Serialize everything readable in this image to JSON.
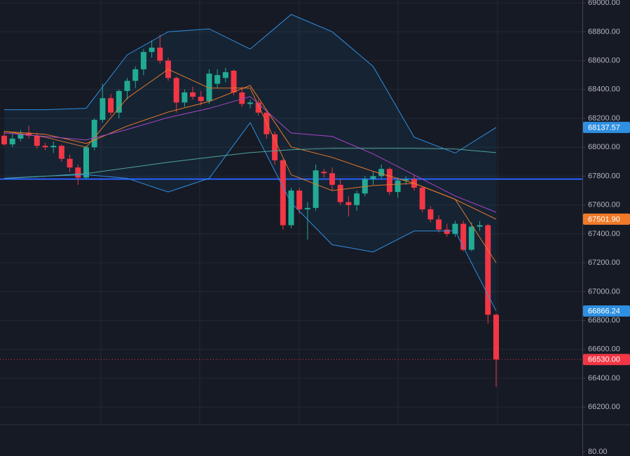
{
  "chart_data": {
    "type": "candlestick",
    "ylim": [
      66080,
      69020
    ],
    "yticks": [
      {
        "value": 66200,
        "label": "66200.00"
      },
      {
        "value": 66400,
        "label": "66400.00"
      },
      {
        "value": 66600,
        "label": "66600.00"
      },
      {
        "value": 66800,
        "label": "66800.00"
      },
      {
        "value": 67000,
        "label": "67000.00"
      },
      {
        "value": 67200,
        "label": "67200.00"
      },
      {
        "value": 67400,
        "label": "67400.00"
      },
      {
        "value": 67600,
        "label": "67600.00"
      },
      {
        "value": 67800,
        "label": "67800.00"
      },
      {
        "value": 68000,
        "label": "68000.00"
      },
      {
        "value": 68200,
        "label": "68200.00"
      },
      {
        "value": 68400,
        "label": "68400.00"
      },
      {
        "value": 68600,
        "label": "68600.00"
      },
      {
        "value": 68800,
        "label": "68800.00"
      },
      {
        "value": 69000,
        "label": "69000.00"
      }
    ],
    "grid": true,
    "up_color": "#22ab94",
    "down_color": "#f23645",
    "open": [
      68080,
      68020,
      68060,
      68100,
      68080,
      68010,
      68000,
      68010,
      67920,
      67860,
      67790,
      68000,
      68190,
      68340,
      68240,
      68390,
      68460,
      68540,
      68660,
      68690,
      68600,
      68480,
      68310,
      68380,
      68350,
      68320,
      68440,
      68480,
      68530,
      68380,
      68300,
      68310,
      68240,
      68090,
      67910,
      67460,
      67700,
      67570,
      67580,
      67830,
      67820,
      67740,
      67620,
      67600,
      67680,
      67780,
      67800,
      67850,
      67690,
      67770,
      67780,
      67720,
      67570,
      67500,
      67430,
      67400,
      67470,
      67290,
      67450,
      67460,
      66840
    ],
    "high": [
      68110,
      68090,
      68120,
      68150,
      68100,
      68030,
      68040,
      68020,
      67950,
      67880,
      68010,
      68200,
      68440,
      68370,
      68400,
      68480,
      68560,
      68680,
      68740,
      68780,
      68620,
      68490,
      68400,
      68420,
      68390,
      68540,
      68540,
      68550,
      68540,
      68420,
      68330,
      68330,
      68260,
      68110,
      67920,
      67720,
      67720,
      67620,
      67880,
      67850,
      67860,
      67780,
      67660,
      67700,
      67800,
      67830,
      67880,
      67860,
      67790,
      67800,
      67810,
      67730,
      67590,
      67530,
      67470,
      67490,
      67490,
      67480,
      67490,
      67470,
      66850
    ],
    "low": [
      68010,
      68000,
      68040,
      68060,
      67990,
      67980,
      67960,
      67900,
      67830,
      67740,
      67780,
      67980,
      68170,
      68220,
      68200,
      68330,
      68410,
      68500,
      68620,
      68580,
      68460,
      68240,
      68280,
      68330,
      68290,
      68300,
      68410,
      68450,
      68360,
      68280,
      68270,
      68220,
      68060,
      67880,
      67430,
      67440,
      67540,
      67360,
      67560,
      67790,
      67700,
      67600,
      67520,
      67560,
      67660,
      67740,
      67780,
      67670,
      67650,
      67740,
      67700,
      67550,
      67480,
      67410,
      67380,
      67380,
      67280,
      67280,
      67420,
      66780,
      66340
    ],
    "close": [
      68020,
      68060,
      68090,
      68080,
      68010,
      68000,
      68010,
      67920,
      67860,
      67790,
      68000,
      68190,
      68340,
      68240,
      68390,
      68460,
      68540,
      68660,
      68690,
      68600,
      68480,
      68310,
      68380,
      68350,
      68320,
      68510,
      68500,
      68520,
      68380,
      68300,
      68310,
      68240,
      68090,
      67910,
      67460,
      67700,
      67570,
      67580,
      67840,
      67820,
      67740,
      67620,
      67600,
      67680,
      67780,
      67800,
      67850,
      67690,
      67770,
      67780,
      67720,
      67570,
      67500,
      67430,
      67400,
      67470,
      67290,
      67450,
      67460,
      66840,
      66530
    ],
    "band_fill": "rgba(33,150,243,0.07)",
    "series": [
      {
        "name": "upper band",
        "color": "#2f8fe0",
        "x": [
          0,
          5,
          10,
          15,
          20,
          25,
          30,
          35,
          40,
          45,
          50,
          55,
          60
        ],
        "values": [
          68260,
          68260,
          68270,
          68640,
          68800,
          68820,
          68680,
          68920,
          68800,
          68560,
          68070,
          67960,
          68137.57
        ]
      },
      {
        "name": "lower band",
        "color": "#2f8fe0",
        "x": [
          0,
          5,
          10,
          15,
          20,
          25,
          30,
          35,
          40,
          45,
          50,
          55,
          60
        ],
        "values": [
          67785,
          67800,
          67810,
          67785,
          67690,
          67785,
          68170,
          67615,
          67325,
          67275,
          67420,
          67420,
          66866.24
        ]
      },
      {
        "name": "fast ma",
        "color": "#d9782d",
        "x": [
          0,
          5,
          10,
          15,
          20,
          25,
          30,
          35,
          40,
          45,
          50,
          55,
          60
        ],
        "values": [
          68110,
          68070,
          68000,
          68340,
          68540,
          68410,
          68410,
          67810,
          67700,
          67735,
          67750,
          67640,
          67200
        ]
      },
      {
        "name": "slow ma",
        "color": "#f07a28",
        "x": [
          0,
          5,
          10,
          15,
          20,
          25,
          30,
          35,
          40,
          45,
          50,
          55,
          60
        ],
        "values": [
          68109,
          68090,
          68026,
          68147,
          68244,
          68317,
          68428,
          68002,
          67930,
          67833,
          67750,
          67639,
          67501.9
        ]
      },
      {
        "name": "purple ma",
        "color": "#a545c8",
        "x": [
          0,
          5,
          10,
          15,
          20,
          25,
          30,
          35,
          40,
          45,
          50,
          55,
          60
        ],
        "values": [
          68099,
          68075,
          68051,
          68123,
          68206,
          68269,
          68351,
          68099,
          68075,
          67954,
          67808,
          67663,
          67550
        ]
      },
      {
        "name": "long ma",
        "color": "#4fa39c",
        "x": [
          0,
          5,
          10,
          15,
          20,
          25,
          30,
          35,
          40,
          45,
          50,
          55,
          60
        ],
        "values": [
          67784,
          67799,
          67818,
          67857,
          67896,
          67930,
          67963,
          67983,
          67993,
          67993,
          67993,
          67988,
          67963
        ]
      }
    ],
    "hline": {
      "value": 67780,
      "color": "#2962ff"
    },
    "price_labels": [
      {
        "value": 68137.57,
        "label": "68137.57",
        "color": "#2f8fe0"
      },
      {
        "value": 67501.9,
        "label": "67501.90",
        "color": "#f07a28"
      },
      {
        "value": 66866.24,
        "label": "66866.24",
        "color": "#2f8fe0"
      },
      {
        "value": 66530,
        "label": "66530.00",
        "color": "#f23645"
      }
    ],
    "pane2_yticks": [
      {
        "value": 80,
        "label": "80.00"
      }
    ]
  }
}
